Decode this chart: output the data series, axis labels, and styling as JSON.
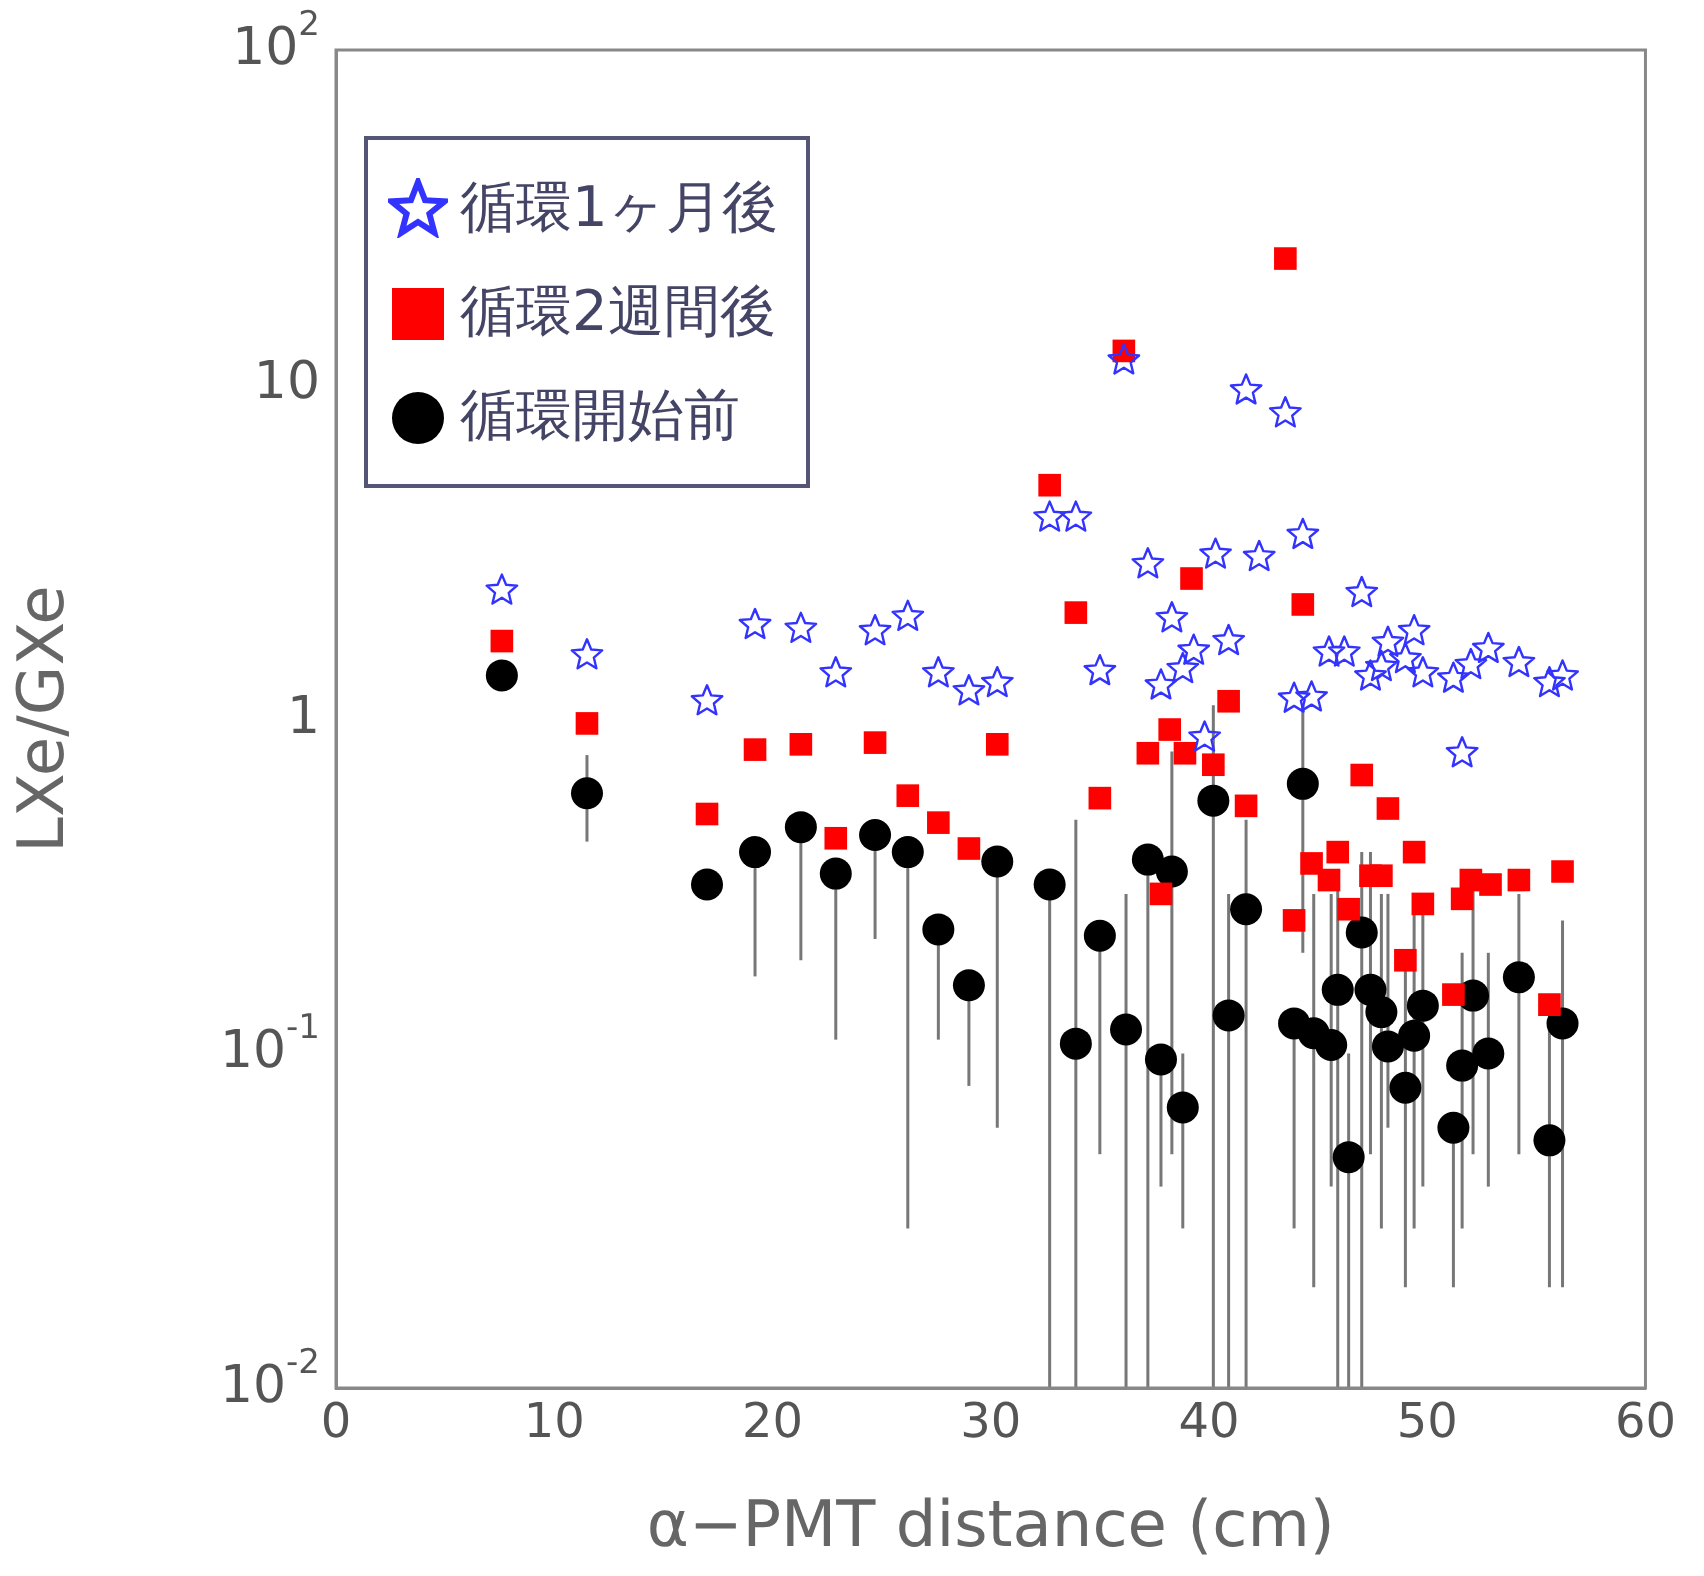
{
  "chart_data": {
    "type": "scatter",
    "xlabel": "α−PMT distance (cm)",
    "ylabel": "LXe/GXe",
    "xlim": [
      0,
      60
    ],
    "xticks": [
      0,
      10,
      20,
      30,
      40,
      50,
      60
    ],
    "ylim": [
      0.01,
      100
    ],
    "yticks": [
      {
        "value": 0.01,
        "label": "10$^{-2}$"
      },
      {
        "value": 0.1,
        "label": "10$^{-1}$"
      },
      1,
      10,
      {
        "value": 100,
        "label": "10$^{2}$"
      }
    ],
    "log": "y",
    "grid": false,
    "legend": "top left",
    "series": [
      {
        "name": "循環1ヶ月後",
        "color": "#3333ff",
        "marker": "star",
        "x": [
          7.6,
          11.5,
          17.0,
          19.2,
          21.3,
          22.9,
          24.7,
          26.2,
          27.6,
          29.0,
          30.3,
          32.7,
          33.9,
          35.0,
          36.1,
          37.2,
          37.8,
          38.3,
          38.8,
          39.3,
          39.8,
          40.3,
          40.9,
          41.7,
          42.3,
          43.5,
          43.9,
          44.3,
          44.7,
          45.5,
          46.2,
          47.0,
          47.4,
          47.9,
          48.2,
          49.0,
          49.4,
          49.8,
          51.2,
          51.6,
          52.0,
          52.8,
          54.2,
          55.6,
          56.2
        ],
        "values": [
          2.42,
          1.55,
          1.13,
          1.91,
          1.86,
          1.37,
          1.83,
          2.02,
          1.37,
          1.21,
          1.28,
          4.0,
          4.0,
          1.39,
          11.8,
          2.9,
          1.26,
          2.0,
          1.41,
          1.6,
          0.88,
          3.1,
          1.71,
          9.6,
          3.05,
          8.2,
          1.15,
          3.55,
          1.16,
          1.58,
          1.58,
          2.38,
          1.34,
          1.43,
          1.69,
          1.51,
          1.83,
          1.37,
          1.32,
          0.79,
          1.45,
          1.62,
          1.47,
          1.28,
          1.34
        ]
      },
      {
        "name": "循環2週間後",
        "color": "#ff0000",
        "marker": "square",
        "x": [
          7.6,
          11.5,
          17.0,
          19.2,
          21.3,
          22.9,
          24.7,
          26.2,
          27.6,
          29.0,
          30.3,
          32.7,
          33.9,
          35.0,
          36.1,
          37.2,
          37.8,
          38.2,
          38.9,
          39.2,
          40.2,
          40.9,
          41.7,
          43.5,
          43.9,
          44.3,
          44.7,
          45.5,
          45.9,
          46.4,
          47.0,
          47.4,
          47.9,
          48.2,
          49.0,
          49.4,
          49.8,
          51.2,
          51.6,
          52.0,
          52.9,
          54.2,
          55.6,
          56.2
        ],
        "values": [
          1.71,
          0.97,
          0.52,
          0.81,
          0.84,
          0.44,
          0.85,
          0.59,
          0.49,
          0.41,
          0.84,
          5.0,
          2.08,
          0.58,
          12.6,
          0.79,
          0.3,
          0.93,
          0.79,
          2.63,
          0.73,
          1.13,
          0.55,
          23.8,
          0.25,
          2.2,
          0.37,
          0.33,
          0.4,
          0.27,
          0.68,
          0.34,
          0.34,
          0.54,
          0.19,
          0.4,
          0.28,
          0.15,
          0.29,
          0.33,
          0.32,
          0.33,
          0.14,
          0.35
        ]
      },
      {
        "name": "循環開始前",
        "color": "#000000",
        "marker": "circle",
        "x": [
          7.6,
          11.5,
          17.0,
          19.2,
          21.3,
          22.9,
          24.7,
          26.2,
          27.6,
          29.0,
          30.3,
          32.7,
          33.9,
          35.0,
          36.2,
          37.2,
          37.8,
          38.3,
          38.8,
          40.2,
          40.9,
          41.7,
          43.9,
          44.3,
          44.8,
          45.6,
          45.9,
          46.4,
          47.0,
          47.4,
          47.9,
          48.2,
          49.0,
          49.4,
          49.8,
          51.2,
          51.6,
          52.1,
          52.8,
          54.2,
          55.6,
          56.2
        ],
        "values": [
          1.35,
          0.6,
          0.32,
          0.4,
          0.475,
          0.345,
          0.45,
          0.4,
          0.235,
          0.16,
          0.375,
          0.32,
          0.107,
          0.225,
          0.118,
          0.38,
          0.096,
          0.35,
          0.069,
          0.57,
          0.13,
          0.27,
          0.123,
          0.64,
          0.115,
          0.106,
          0.155,
          0.049,
          0.23,
          0.155,
          0.133,
          0.105,
          0.079,
          0.113,
          0.139,
          0.06,
          0.092,
          0.149,
          0.1,
          0.169,
          0.055,
          0.123
        ],
        "errors": [
          null,
          [
            0.43,
            0.78
          ],
          null,
          [
            0.17,
            0.4
          ],
          [
            0.19,
            0.475
          ],
          [
            0.11,
            0.345
          ],
          [
            0.22,
            0.45
          ],
          [
            0.03,
            0.4
          ],
          [
            0.11,
            0.235
          ],
          [
            0.08,
            0.16
          ],
          [
            0.06,
            0.375
          ],
          [
            0.01,
            0.32
          ],
          [
            0.01,
            0.5
          ],
          [
            0.05,
            0.225
          ],
          [
            0.01,
            0.3
          ],
          [
            0.01,
            0.38
          ],
          [
            0.04,
            0.096
          ],
          [
            0.05,
            0.8
          ],
          [
            0.03,
            0.1
          ],
          [
            0.01,
            1.1
          ],
          [
            0.01,
            0.3
          ],
          [
            0.01,
            0.5
          ],
          [
            0.03,
            0.123
          ],
          [
            0.2,
            1.1
          ],
          [
            0.02,
            0.3
          ],
          [
            0.04,
            0.3
          ],
          [
            0.01,
            0.35
          ],
          [
            0.01,
            0.1
          ],
          [
            0.01,
            0.4
          ],
          [
            0.05,
            0.4
          ],
          [
            0.03,
            0.3
          ],
          [
            0.06,
            0.3
          ],
          [
            0.02,
            0.2
          ],
          [
            0.03,
            0.3
          ],
          [
            0.04,
            0.3
          ],
          [
            0.02,
            0.06
          ],
          [
            0.03,
            0.2
          ],
          [
            0.05,
            0.35
          ],
          [
            0.04,
            0.2
          ],
          [
            0.05,
            0.3
          ],
          [
            0.02,
            0.12
          ],
          [
            0.02,
            0.25
          ]
        ]
      }
    ]
  }
}
